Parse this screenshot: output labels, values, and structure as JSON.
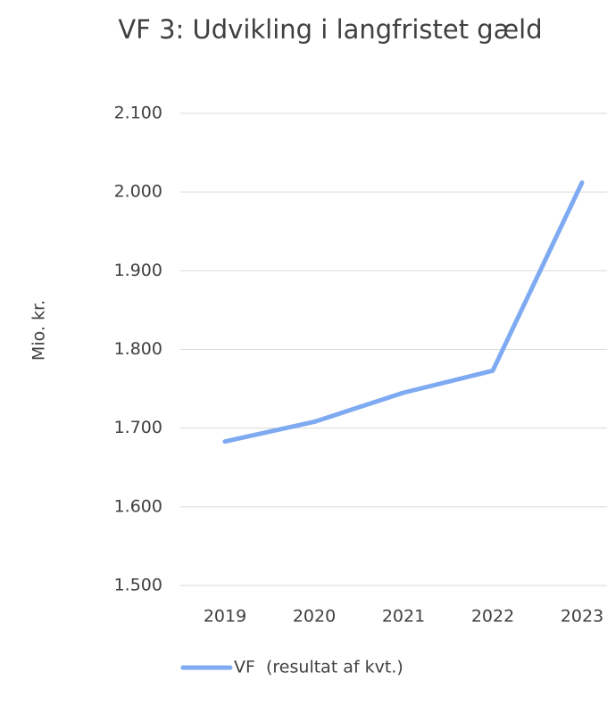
{
  "chart_data": {
    "type": "line",
    "title": "VF 3: Udvikling i langfristet gæld",
    "y_label": "Mio. kr.",
    "categories": [
      "2019",
      "2020",
      "2021",
      "2022",
      "2023"
    ],
    "series": [
      {
        "name": "VF  (resultat af kvt.)",
        "color": "#7eaaf2",
        "values": [
          1683,
          1708,
          1745,
          1773,
          2012
        ]
      }
    ],
    "ylim": [
      1500,
      2100
    ],
    "yticks": [
      {
        "value": 1500,
        "label": "1.500"
      },
      {
        "value": 1600,
        "label": "1.600"
      },
      {
        "value": 1700,
        "label": "1.700"
      },
      {
        "value": 1800,
        "label": "1.800"
      },
      {
        "value": 1900,
        "label": "1.900"
      },
      {
        "value": 2000,
        "label": "2.000"
      },
      {
        "value": 2100,
        "label": "2.100"
      }
    ],
    "grid": true,
    "legend": "bottom"
  }
}
